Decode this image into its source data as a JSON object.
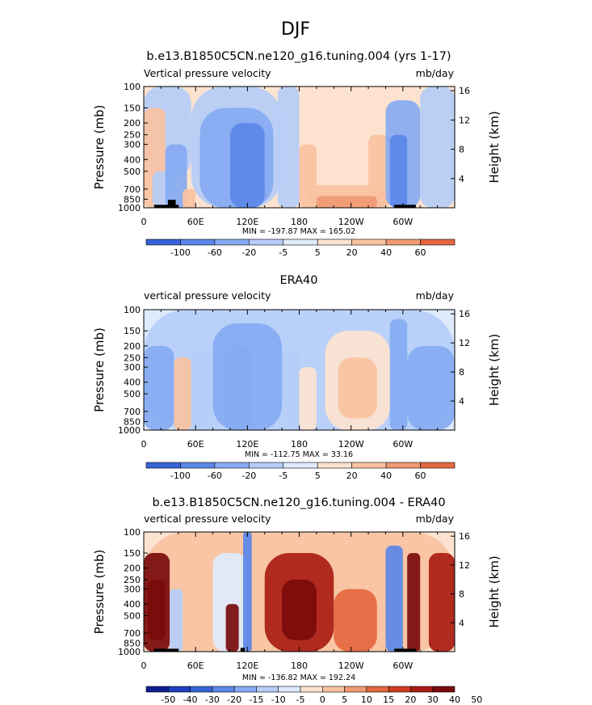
{
  "title": "DJF",
  "chart_data": [
    {
      "type": "heatmap",
      "title": "b.e13.B1850C5CN.ne120_g16.tuning.004 (yrs 1-17)",
      "left_label": "Vertical pressure velocity",
      "right_label": "mb/day",
      "ylabel": "Pressure (mb)",
      "ylabel_right": "Height (km)",
      "xticks": [
        "0",
        "60E",
        "120E",
        "180",
        "120W",
        "60W"
      ],
      "yticks": [
        "100",
        "150",
        "200",
        "250",
        "300",
        "400",
        "500",
        "700",
        "850",
        "1000"
      ],
      "yticks_right": [
        "16",
        "12",
        "8",
        "4"
      ],
      "stats": "MIN = -197.87   MAX = 165.02",
      "colorbar_labels": [
        "-100",
        "-60",
        "-20",
        "-5",
        "5",
        "20",
        "40",
        "60"
      ],
      "colorbar_colors": [
        "#0b1f8f",
        "#1f3fbf",
        "#3763d8",
        "#5b87e8",
        "#86aaf2",
        "#b5cdf7",
        "#dfeafb",
        "#fde3cf",
        "#f8c2a1",
        "#f09a74",
        "#e5673f",
        "#cf3b20",
        "#a91c12",
        "#7a0b0b"
      ],
      "xlim": [
        0,
        360
      ],
      "ylim": [
        1000,
        100
      ],
      "field": [
        {
          "lon": [
            0,
            55
          ],
          "plev": [
            550,
            100
          ],
          "value": -15
        },
        {
          "lon": [
            0,
            25
          ],
          "plev": [
            1000,
            150
          ],
          "value": 25
        },
        {
          "lon": [
            10,
            35
          ],
          "plev": [
            1000,
            500
          ],
          "value": -8
        },
        {
          "lon": [
            25,
            50
          ],
          "plev": [
            1000,
            300
          ],
          "value": -60
        },
        {
          "lon": [
            45,
            60
          ],
          "plev": [
            1000,
            700
          ],
          "value": 30
        },
        {
          "lon": [
            55,
            160
          ],
          "plev": [
            1000,
            100
          ],
          "value": -20
        },
        {
          "lon": [
            65,
            150
          ],
          "plev": [
            1000,
            150
          ],
          "value": -60
        },
        {
          "lon": [
            100,
            140
          ],
          "plev": [
            1000,
            200
          ],
          "value": -90
        },
        {
          "lon": [
            155,
            180
          ],
          "plev": [
            1000,
            100
          ],
          "value": -6
        },
        {
          "lon": [
            180,
            285
          ],
          "plev": [
            1000,
            130
          ],
          "value": 10
        },
        {
          "lon": [
            180,
            200
          ],
          "plev": [
            1000,
            300
          ],
          "value": 25
        },
        {
          "lon": [
            260,
            285
          ],
          "plev": [
            1000,
            250
          ],
          "value": 25
        },
        {
          "lon": [
            190,
            280
          ],
          "plev": [
            1000,
            650
          ],
          "value": 30
        },
        {
          "lon": [
            200,
            270
          ],
          "plev": [
            1000,
            800
          ],
          "value": 45
        },
        {
          "lon": [
            280,
            320
          ],
          "plev": [
            1000,
            130
          ],
          "value": -60
        },
        {
          "lon": [
            285,
            305
          ],
          "plev": [
            1000,
            250
          ],
          "value": -100
        },
        {
          "lon": [
            320,
            360
          ],
          "plev": [
            1000,
            100
          ],
          "value": -15
        }
      ],
      "topography": [
        {
          "lon": [
            12,
            40
          ],
          "plev": [
            1000,
            945
          ]
        },
        {
          "lon": [
            28,
            37
          ],
          "plev": [
            1000,
            860
          ]
        },
        {
          "lon": [
            290,
            315
          ],
          "plev": [
            1000,
            945
          ]
        }
      ]
    },
    {
      "type": "heatmap",
      "title": "ERA40",
      "left_label": "vertical pressure velocity",
      "right_label": "mb/day",
      "ylabel": "Pressure (mb)",
      "ylabel_right": "Height (km)",
      "xticks": [
        "0",
        "60E",
        "120E",
        "180",
        "120W",
        "60W"
      ],
      "yticks": [
        "100",
        "150",
        "200",
        "250",
        "300",
        "400",
        "500",
        "700",
        "850",
        "1000"
      ],
      "yticks_right": [
        "16",
        "12",
        "8",
        "4"
      ],
      "stats": "MIN = -112.75   MAX =  33.16",
      "colorbar_labels": [
        "-100",
        "-60",
        "-20",
        "-5",
        "5",
        "20",
        "40",
        "60"
      ],
      "colorbar_colors": [
        "#0b1f8f",
        "#1f3fbf",
        "#3763d8",
        "#5b87e8",
        "#86aaf2",
        "#b5cdf7",
        "#dfeafb",
        "#fde3cf",
        "#f8c2a1",
        "#f09a74",
        "#e5673f",
        "#cf3b20",
        "#a91c12",
        "#7a0b0b"
      ],
      "xlim": [
        0,
        360
      ],
      "ylim": [
        1000,
        100
      ],
      "field": [
        {
          "lon": [
            0,
            360
          ],
          "plev": [
            1000,
            100
          ],
          "value": -6
        },
        {
          "lon": [
            0,
            35
          ],
          "plev": [
            1000,
            200
          ],
          "value": -30
        },
        {
          "lon": [
            35,
            55
          ],
          "plev": [
            1000,
            250
          ],
          "value": 25
        },
        {
          "lon": [
            55,
            80
          ],
          "plev": [
            1000,
            200
          ],
          "value": -15
        },
        {
          "lon": [
            80,
            160
          ],
          "plev": [
            1000,
            130
          ],
          "value": -30
        },
        {
          "lon": [
            95,
            125
          ],
          "plev": [
            1000,
            200
          ],
          "value": -60
        },
        {
          "lon": [
            160,
            180
          ],
          "plev": [
            1000,
            200
          ],
          "value": -8
        },
        {
          "lon": [
            180,
            200
          ],
          "plev": [
            1000,
            300
          ],
          "value": 8
        },
        {
          "lon": [
            210,
            285
          ],
          "plev": [
            1000,
            150
          ],
          "value": 10
        },
        {
          "lon": [
            225,
            270
          ],
          "plev": [
            800,
            250
          ],
          "value": 25
        },
        {
          "lon": [
            285,
            305
          ],
          "plev": [
            1000,
            120
          ],
          "value": -60
        },
        {
          "lon": [
            305,
            360
          ],
          "plev": [
            1000,
            200
          ],
          "value": -25
        }
      ],
      "topography": []
    },
    {
      "type": "heatmap",
      "title": "b.e13.B1850C5CN.ne120_g16.tuning.004 - ERA40",
      "left_label": "vertical pressure velocity",
      "right_label": "mb/day",
      "ylabel": "Pressure (mb)",
      "ylabel_right": "Height (km)",
      "xticks": [
        "0",
        "60E",
        "120E",
        "180",
        "120W",
        "60W"
      ],
      "yticks": [
        "100",
        "150",
        "200",
        "250",
        "300",
        "400",
        "500",
        "700",
        "850",
        "1000"
      ],
      "yticks_right": [
        "16",
        "12",
        "8",
        "4"
      ],
      "stats": "MIN = -136.82   MAX = 192.24",
      "colorbar_labels": [
        "-50",
        "-40",
        "-30",
        "-20",
        "-15",
        "-10",
        "-5",
        "0",
        "5",
        "10",
        "15",
        "20",
        "30",
        "40",
        "50"
      ],
      "colorbar_colors": [
        "#0b1f8f",
        "#1f3fbf",
        "#3763d8",
        "#5b87e8",
        "#86aaf2",
        "#b5cdf7",
        "#dfeafb",
        "#fde3cf",
        "#f8c2a1",
        "#f09a74",
        "#e5673f",
        "#cf3b20",
        "#a91c12",
        "#7a0b0b"
      ],
      "xlim": [
        0,
        360
      ],
      "ylim": [
        1000,
        100
      ],
      "field": [
        {
          "lon": [
            0,
            360
          ],
          "plev": [
            1000,
            100
          ],
          "value": 3
        },
        {
          "lon": [
            0,
            30
          ],
          "plev": [
            1000,
            150
          ],
          "value": 30
        },
        {
          "lon": [
            5,
            25
          ],
          "plev": [
            800,
            250
          ],
          "value": 50
        },
        {
          "lon": [
            30,
            45
          ],
          "plev": [
            1000,
            300
          ],
          "value": -15
        },
        {
          "lon": [
            80,
            120
          ],
          "plev": [
            1000,
            150
          ],
          "value": -8
        },
        {
          "lon": [
            95,
            110
          ],
          "plev": [
            1000,
            400
          ],
          "value": 30
        },
        {
          "lon": [
            115,
            125
          ],
          "plev": [
            1000,
            100
          ],
          "value": -25
        },
        {
          "lon": [
            140,
            220
          ],
          "plev": [
            1000,
            150
          ],
          "value": 20
        },
        {
          "lon": [
            160,
            200
          ],
          "plev": [
            800,
            250
          ],
          "value": 35
        },
        {
          "lon": [
            220,
            270
          ],
          "plev": [
            1000,
            300
          ],
          "value": 12
        },
        {
          "lon": [
            280,
            300
          ],
          "plev": [
            1000,
            130
          ],
          "value": -30
        },
        {
          "lon": [
            305,
            320
          ],
          "plev": [
            1000,
            150
          ],
          "value": 30
        },
        {
          "lon": [
            330,
            360
          ],
          "plev": [
            1000,
            150
          ],
          "value": 25
        }
      ],
      "topography": [
        {
          "lon": [
            12,
            40
          ],
          "plev": [
            1000,
            945
          ]
        },
        {
          "lon": [
            112,
            117
          ],
          "plev": [
            1000,
            930
          ]
        },
        {
          "lon": [
            290,
            315
          ],
          "plev": [
            1000,
            945
          ]
        }
      ]
    }
  ]
}
